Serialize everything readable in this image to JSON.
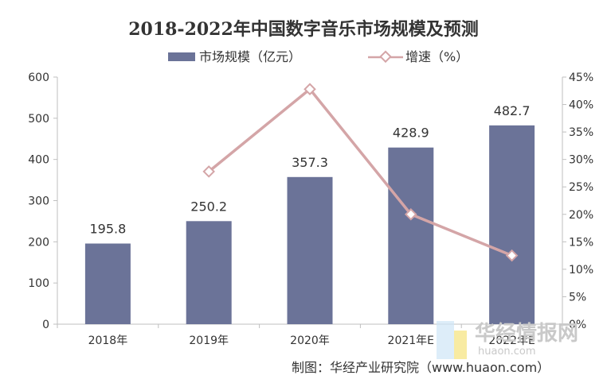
{
  "chart_data": {
    "type": "bar",
    "title": "2018-2022年中国数字音乐市场规模及预测",
    "categories": [
      "2018年",
      "2019年",
      "2020年",
      "2021年E",
      "2022年E"
    ],
    "series": [
      {
        "name": "市场规模（亿元）",
        "type": "bar",
        "axis": "left",
        "values": [
          195.8,
          250.2,
          357.3,
          428.9,
          482.7
        ],
        "labels": [
          "195.8",
          "250.2",
          "357.3",
          "428.9",
          "482.7"
        ]
      },
      {
        "name": "增速（%）",
        "type": "line",
        "axis": "right",
        "values": [
          null,
          27.8,
          42.8,
          20.0,
          12.5
        ]
      }
    ],
    "y_left": {
      "ylim": [
        0,
        600
      ],
      "ticks": [
        "0",
        "100",
        "200",
        "300",
        "400",
        "500",
        "600"
      ]
    },
    "y_right": {
      "ylim": [
        0,
        45
      ],
      "ticks": [
        "0%",
        "5%",
        "10%",
        "15%",
        "20%",
        "25%",
        "30%",
        "35%",
        "40%",
        "45%"
      ]
    },
    "legend_position": "top",
    "grid": false,
    "colors": {
      "bar": "#6b7398",
      "line": "#d4a5a7",
      "axis": "#bfbfbf"
    }
  },
  "source_note": "制图：华经产业研究院（www.huaon.com）",
  "watermark": {
    "brand": "华经情报网",
    "url": "huaon.com"
  }
}
